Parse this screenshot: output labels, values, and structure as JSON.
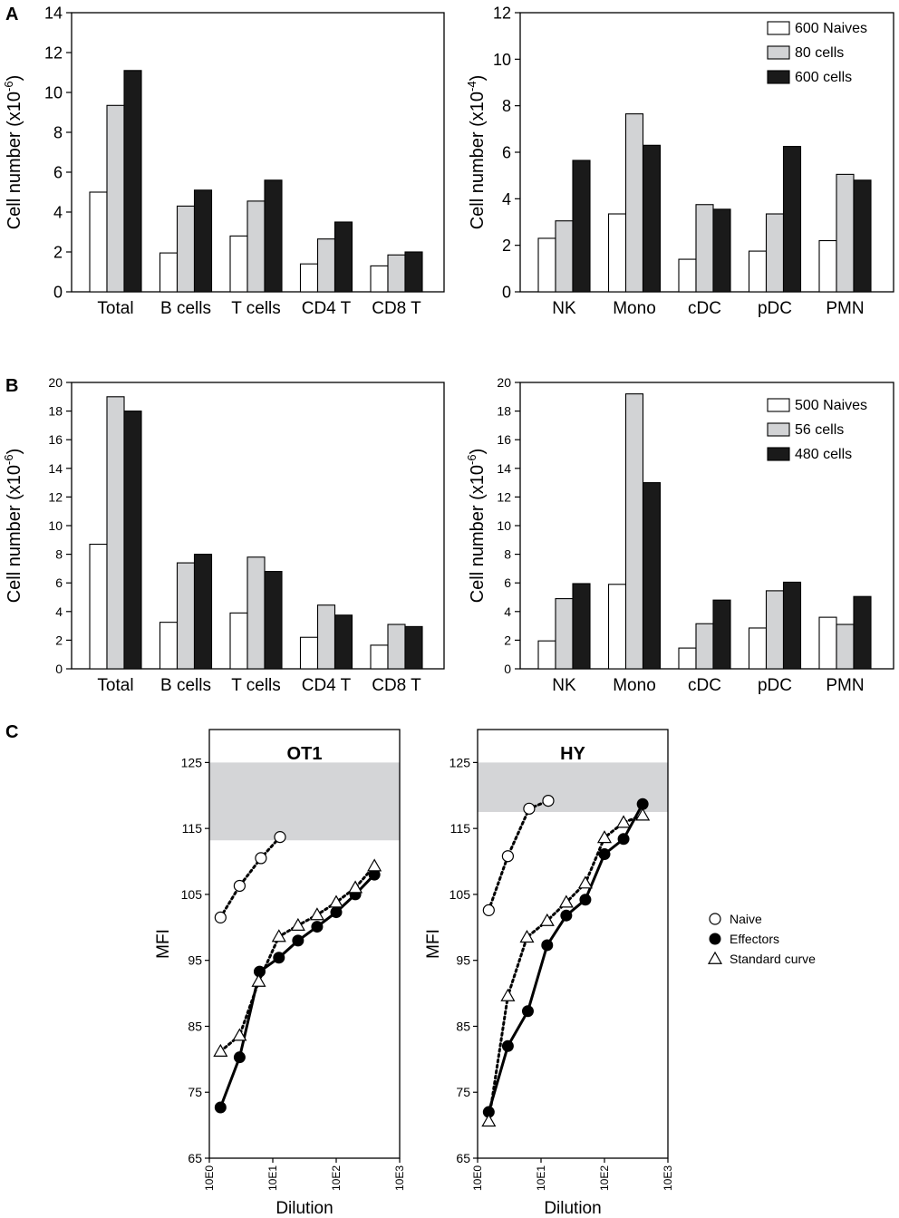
{
  "panel_labels": [
    "A",
    "B",
    "C"
  ],
  "colors": {
    "naive": "#ffffff",
    "small": "#d2d3d5",
    "large": "#1a1a1a",
    "band": "#d4d5d7",
    "axis": "#000000"
  },
  "chart_data": [
    {
      "id": "A-left",
      "type": "bar",
      "panel": "A",
      "categories": [
        "Total",
        "B cells",
        "T cells",
        "CD4 T",
        "CD8 T"
      ],
      "ylabel": "Cell number (x10",
      "ylabel_exp": "-6",
      "ylabel_end": ")",
      "ylim": [
        0,
        14
      ],
      "yticks": [
        0,
        2,
        4,
        6,
        8,
        10,
        12,
        14
      ],
      "series": [
        {
          "name": "600 Naives",
          "values": [
            5.0,
            1.95,
            2.8,
            1.4,
            1.3
          ]
        },
        {
          "name": "80 cells",
          "values": [
            9.35,
            4.3,
            4.55,
            2.65,
            1.85
          ]
        },
        {
          "name": "600 cells",
          "values": [
            11.1,
            5.1,
            5.6,
            3.5,
            2.0
          ]
        }
      ]
    },
    {
      "id": "A-right",
      "type": "bar",
      "panel": "A",
      "categories": [
        "NK",
        "Mono",
        "cDC",
        "pDC",
        "PMN"
      ],
      "ylabel": "Cell number (x10",
      "ylabel_exp": "-4",
      "ylabel_end": ")",
      "ylim": [
        0,
        12
      ],
      "yticks": [
        0,
        2,
        4,
        6,
        8,
        10,
        12
      ],
      "legend": [
        "600 Naives",
        "80 cells",
        "600 cells"
      ],
      "series": [
        {
          "name": "600 Naives",
          "values": [
            2.3,
            3.35,
            1.4,
            1.75,
            2.2
          ]
        },
        {
          "name": "80 cells",
          "values": [
            3.05,
            7.65,
            3.75,
            3.35,
            5.05
          ]
        },
        {
          "name": "600 cells",
          "values": [
            5.65,
            6.3,
            3.55,
            6.25,
            4.8
          ]
        }
      ]
    },
    {
      "id": "B-left",
      "type": "bar",
      "panel": "B",
      "categories": [
        "Total",
        "B cells",
        "T cells",
        "CD4 T",
        "CD8 T"
      ],
      "ylabel": "Cell number (x10",
      "ylabel_exp": "-6",
      "ylabel_end": ")",
      "ylim": [
        0,
        20
      ],
      "yticks": [
        0,
        2,
        4,
        6,
        8,
        10,
        12,
        14,
        16,
        18,
        20
      ],
      "series": [
        {
          "name": "500 Naives",
          "values": [
            8.7,
            3.25,
            3.9,
            2.2,
            1.65
          ]
        },
        {
          "name": "56 cells",
          "values": [
            19.0,
            7.4,
            7.8,
            4.45,
            3.1
          ]
        },
        {
          "name": "480 cells",
          "values": [
            18.0,
            8.0,
            6.8,
            3.75,
            2.95
          ]
        }
      ]
    },
    {
      "id": "B-right",
      "type": "bar",
      "panel": "B",
      "categories": [
        "NK",
        "Mono",
        "cDC",
        "pDC",
        "PMN"
      ],
      "ylabel": "Cell number (x10",
      "ylabel_exp": "-6",
      "ylabel_end": ")",
      "ylim": [
        0,
        20
      ],
      "yticks": [
        0,
        2,
        4,
        6,
        8,
        10,
        12,
        14,
        16,
        18,
        20
      ],
      "legend": [
        "500 Naives",
        "56 cells",
        "480 cells"
      ],
      "series": [
        {
          "name": "500 Naives",
          "values": [
            1.95,
            5.9,
            1.45,
            2.85,
            3.6
          ]
        },
        {
          "name": "56 cells",
          "values": [
            4.9,
            19.2,
            3.15,
            5.45,
            3.1
          ]
        },
        {
          "name": "480 cells",
          "values": [
            5.95,
            13.0,
            4.8,
            6.05,
            5.05
          ]
        }
      ]
    },
    {
      "id": "C-OT1",
      "type": "line",
      "panel": "C",
      "title": "OT1",
      "xlabel": "Dilution",
      "ylabel": "MFI",
      "xscale": "log",
      "xlim": [
        1,
        1000
      ],
      "xticks": [
        1,
        10,
        100,
        1000
      ],
      "xtick_labels": [
        "10E0",
        "10E1",
        "10E2",
        "10E3"
      ],
      "ylim": [
        65,
        130
      ],
      "yticks": [
        65,
        75,
        85,
        95,
        105,
        115,
        125
      ],
      "band": [
        113.2,
        125
      ],
      "series": [
        {
          "name": "Naive",
          "marker": "open-circle",
          "line": "dotted",
          "x": [
            1.5,
            3.0,
            6.5,
            13.0
          ],
          "y": [
            101.5,
            106.3,
            110.5,
            113.7
          ]
        },
        {
          "name": "Effectors",
          "marker": "filled-circle",
          "line": "solid",
          "x": [
            1.5,
            3.0,
            6.2,
            12.5,
            25,
            50,
            100,
            200,
            400
          ],
          "y": [
            72.7,
            80.3,
            93.3,
            95.4,
            98.0,
            100.1,
            102.3,
            105.0,
            108.0
          ]
        },
        {
          "name": "Standard curve",
          "marker": "open-triangle",
          "line": "dotted",
          "x": [
            1.5,
            3.0,
            6.0,
            12.5,
            25,
            50,
            100,
            200,
            400
          ],
          "y": [
            81.2,
            83.6,
            91.8,
            98.6,
            100.3,
            101.9,
            103.8,
            106.0,
            109.3
          ]
        }
      ]
    },
    {
      "id": "C-HY",
      "type": "line",
      "panel": "C",
      "title": "HY",
      "xlabel": "Dilution",
      "ylabel": "MFI",
      "xscale": "log",
      "xlim": [
        1,
        1000
      ],
      "xticks": [
        1,
        10,
        100,
        1000
      ],
      "xtick_labels": [
        "10E0",
        "10E1",
        "10E2",
        "10E3"
      ],
      "ylim": [
        65,
        130
      ],
      "yticks": [
        65,
        75,
        85,
        95,
        105,
        115,
        125
      ],
      "band": [
        117.5,
        125
      ],
      "series": [
        {
          "name": "Naive",
          "marker": "open-circle",
          "line": "dotted",
          "x": [
            1.5,
            3.0,
            6.5,
            13.0
          ],
          "y": [
            102.6,
            110.8,
            118.0,
            119.2
          ]
        },
        {
          "name": "Effectors",
          "marker": "filled-circle",
          "line": "solid",
          "x": [
            1.5,
            3.0,
            6.2,
            12.5,
            25,
            50,
            100,
            200,
            400
          ],
          "y": [
            72.0,
            82.0,
            87.3,
            97.3,
            101.8,
            104.2,
            111.1,
            113.4,
            118.7
          ]
        },
        {
          "name": "Standard curve",
          "marker": "open-triangle",
          "line": "dotted",
          "x": [
            1.5,
            3.0,
            6.0,
            12.5,
            25,
            50,
            100,
            200,
            400
          ],
          "y": [
            70.6,
            89.6,
            98.5,
            101.0,
            103.8,
            106.7,
            113.6,
            115.9,
            117.0
          ]
        }
      ]
    }
  ],
  "line_legend": [
    "Naive",
    "Effectors",
    "Standard curve"
  ]
}
